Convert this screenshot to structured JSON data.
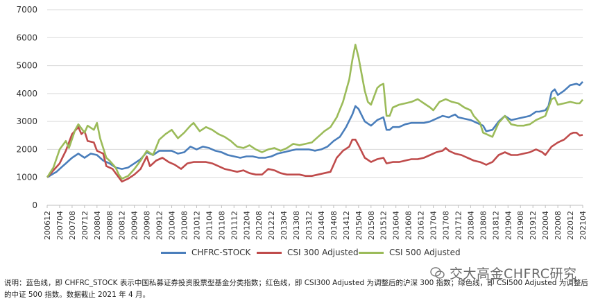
{
  "chart_data": {
    "type": "line",
    "ylim": [
      0,
      7000
    ],
    "yticks": [
      0,
      1000,
      2000,
      3000,
      4000,
      5000,
      6000,
      7000
    ],
    "grid": "horizontal",
    "legend_position": "bottom",
    "x_start": "2006-12",
    "x_step_months": 1,
    "xtick_labels": [
      "200612",
      "200704",
      "200708",
      "200712",
      "200804",
      "200808",
      "200812",
      "200904",
      "200908",
      "200912",
      "201004",
      "201008",
      "201012",
      "201104",
      "201108",
      "201112",
      "201204",
      "201208",
      "201212",
      "201304",
      "201308",
      "201312",
      "201404",
      "201408",
      "201412",
      "201504",
      "201508",
      "201512",
      "201604",
      "201608",
      "201612",
      "201704",
      "201708",
      "201712",
      "201804",
      "201808",
      "201812",
      "201904",
      "201908",
      "201912",
      "202004",
      "202008",
      "202012",
      "202104"
    ],
    "series": [
      {
        "name": "CHFRC-STOCK",
        "color": "#4a7ebb",
        "anchors": [
          [
            0,
            1000
          ],
          [
            3,
            1200
          ],
          [
            6,
            1500
          ],
          [
            8,
            1700
          ],
          [
            10,
            1850
          ],
          [
            12,
            1700
          ],
          [
            14,
            1850
          ],
          [
            16,
            1800
          ],
          [
            18,
            1600
          ],
          [
            20,
            1500
          ],
          [
            22,
            1350
          ],
          [
            24,
            1300
          ],
          [
            26,
            1350
          ],
          [
            28,
            1500
          ],
          [
            30,
            1650
          ],
          [
            32,
            1900
          ],
          [
            34,
            1800
          ],
          [
            36,
            1950
          ],
          [
            38,
            1950
          ],
          [
            40,
            1950
          ],
          [
            42,
            1850
          ],
          [
            44,
            1900
          ],
          [
            46,
            2100
          ],
          [
            48,
            2000
          ],
          [
            50,
            2100
          ],
          [
            52,
            2050
          ],
          [
            54,
            1950
          ],
          [
            56,
            1900
          ],
          [
            58,
            1800
          ],
          [
            60,
            1750
          ],
          [
            62,
            1700
          ],
          [
            64,
            1750
          ],
          [
            66,
            1750
          ],
          [
            68,
            1700
          ],
          [
            70,
            1700
          ],
          [
            72,
            1750
          ],
          [
            74,
            1850
          ],
          [
            76,
            1900
          ],
          [
            78,
            1950
          ],
          [
            80,
            2000
          ],
          [
            82,
            2000
          ],
          [
            84,
            2000
          ],
          [
            86,
            1950
          ],
          [
            88,
            2000
          ],
          [
            90,
            2100
          ],
          [
            92,
            2300
          ],
          [
            94,
            2450
          ],
          [
            96,
            2800
          ],
          [
            98,
            3250
          ],
          [
            99,
            3550
          ],
          [
            100,
            3450
          ],
          [
            102,
            3000
          ],
          [
            104,
            2850
          ],
          [
            106,
            3050
          ],
          [
            108,
            3150
          ],
          [
            109,
            2700
          ],
          [
            110,
            2700
          ],
          [
            111,
            2800
          ],
          [
            113,
            2800
          ],
          [
            115,
            2900
          ],
          [
            117,
            2950
          ],
          [
            119,
            2950
          ],
          [
            121,
            2950
          ],
          [
            123,
            3000
          ],
          [
            125,
            3100
          ],
          [
            127,
            3200
          ],
          [
            129,
            3150
          ],
          [
            131,
            3250
          ],
          [
            132,
            3150
          ],
          [
            134,
            3100
          ],
          [
            136,
            3050
          ],
          [
            138,
            2950
          ],
          [
            140,
            2850
          ],
          [
            141,
            2650
          ],
          [
            143,
            2700
          ],
          [
            145,
            3000
          ],
          [
            147,
            3200
          ],
          [
            149,
            3050
          ],
          [
            151,
            3100
          ],
          [
            153,
            3150
          ],
          [
            155,
            3200
          ],
          [
            157,
            3350
          ],
          [
            158,
            3350
          ],
          [
            160,
            3400
          ],
          [
            161,
            3550
          ],
          [
            162,
            4050
          ],
          [
            163,
            4150
          ],
          [
            164,
            3950
          ],
          [
            166,
            4100
          ],
          [
            168,
            4300
          ],
          [
            170,
            4350
          ],
          [
            171,
            4300
          ],
          [
            172,
            4420
          ]
        ]
      },
      {
        "name": "CSI 300 Adjusted",
        "color": "#bf4b4b",
        "anchors": [
          [
            0,
            1000
          ],
          [
            2,
            1250
          ],
          [
            4,
            1500
          ],
          [
            6,
            1950
          ],
          [
            8,
            2550
          ],
          [
            10,
            2800
          ],
          [
            11,
            2550
          ],
          [
            12,
            2650
          ],
          [
            13,
            2300
          ],
          [
            15,
            2250
          ],
          [
            16,
            1950
          ],
          [
            18,
            1850
          ],
          [
            19,
            1400
          ],
          [
            21,
            1300
          ],
          [
            22,
            1150
          ],
          [
            23,
            1000
          ],
          [
            24,
            850
          ],
          [
            26,
            950
          ],
          [
            28,
            1100
          ],
          [
            30,
            1300
          ],
          [
            32,
            1750
          ],
          [
            33,
            1400
          ],
          [
            35,
            1600
          ],
          [
            37,
            1700
          ],
          [
            39,
            1550
          ],
          [
            41,
            1450
          ],
          [
            43,
            1300
          ],
          [
            45,
            1500
          ],
          [
            47,
            1550
          ],
          [
            49,
            1550
          ],
          [
            51,
            1550
          ],
          [
            53,
            1500
          ],
          [
            55,
            1400
          ],
          [
            57,
            1300
          ],
          [
            59,
            1250
          ],
          [
            61,
            1200
          ],
          [
            63,
            1250
          ],
          [
            65,
            1150
          ],
          [
            67,
            1100
          ],
          [
            69,
            1100
          ],
          [
            71,
            1300
          ],
          [
            73,
            1250
          ],
          [
            75,
            1150
          ],
          [
            77,
            1100
          ],
          [
            79,
            1100
          ],
          [
            81,
            1100
          ],
          [
            83,
            1050
          ],
          [
            85,
            1050
          ],
          [
            87,
            1100
          ],
          [
            89,
            1150
          ],
          [
            91,
            1200
          ],
          [
            93,
            1700
          ],
          [
            95,
            1950
          ],
          [
            97,
            2100
          ],
          [
            98,
            2350
          ],
          [
            99,
            2350
          ],
          [
            100,
            2150
          ],
          [
            102,
            1700
          ],
          [
            104,
            1550
          ],
          [
            106,
            1650
          ],
          [
            108,
            1700
          ],
          [
            109,
            1500
          ],
          [
            111,
            1550
          ],
          [
            113,
            1550
          ],
          [
            115,
            1600
          ],
          [
            117,
            1650
          ],
          [
            119,
            1650
          ],
          [
            121,
            1700
          ],
          [
            123,
            1800
          ],
          [
            125,
            1900
          ],
          [
            127,
            1950
          ],
          [
            128,
            2050
          ],
          [
            129,
            1950
          ],
          [
            131,
            1850
          ],
          [
            133,
            1800
          ],
          [
            135,
            1700
          ],
          [
            137,
            1600
          ],
          [
            139,
            1550
          ],
          [
            141,
            1450
          ],
          [
            143,
            1550
          ],
          [
            145,
            1800
          ],
          [
            147,
            1900
          ],
          [
            149,
            1800
          ],
          [
            151,
            1800
          ],
          [
            153,
            1850
          ],
          [
            155,
            1900
          ],
          [
            157,
            2000
          ],
          [
            159,
            1900
          ],
          [
            160,
            1800
          ],
          [
            162,
            2100
          ],
          [
            164,
            2250
          ],
          [
            166,
            2350
          ],
          [
            168,
            2550
          ],
          [
            169,
            2600
          ],
          [
            170,
            2600
          ],
          [
            171,
            2500
          ],
          [
            172,
            2520
          ]
        ]
      },
      {
        "name": "CSI 500 Adjusted",
        "color": "#9bbb59",
        "anchors": [
          [
            0,
            1000
          ],
          [
            2,
            1350
          ],
          [
            4,
            2000
          ],
          [
            6,
            2300
          ],
          [
            7,
            2050
          ],
          [
            9,
            2700
          ],
          [
            10,
            2900
          ],
          [
            12,
            2600
          ],
          [
            13,
            2850
          ],
          [
            15,
            2700
          ],
          [
            16,
            2950
          ],
          [
            17,
            2400
          ],
          [
            19,
            1700
          ],
          [
            20,
            1600
          ],
          [
            22,
            1350
          ],
          [
            23,
            1100
          ],
          [
            24,
            950
          ],
          [
            26,
            1050
          ],
          [
            28,
            1300
          ],
          [
            30,
            1600
          ],
          [
            32,
            1950
          ],
          [
            34,
            1800
          ],
          [
            36,
            2350
          ],
          [
            38,
            2550
          ],
          [
            40,
            2700
          ],
          [
            42,
            2400
          ],
          [
            44,
            2600
          ],
          [
            46,
            2850
          ],
          [
            47,
            2950
          ],
          [
            49,
            2650
          ],
          [
            51,
            2800
          ],
          [
            53,
            2700
          ],
          [
            55,
            2550
          ],
          [
            57,
            2450
          ],
          [
            59,
            2300
          ],
          [
            61,
            2100
          ],
          [
            63,
            2050
          ],
          [
            65,
            2150
          ],
          [
            67,
            2000
          ],
          [
            69,
            1900
          ],
          [
            71,
            2000
          ],
          [
            73,
            2050
          ],
          [
            75,
            1950
          ],
          [
            77,
            2050
          ],
          [
            79,
            2200
          ],
          [
            81,
            2150
          ],
          [
            83,
            2200
          ],
          [
            85,
            2250
          ],
          [
            87,
            2450
          ],
          [
            89,
            2650
          ],
          [
            91,
            2800
          ],
          [
            93,
            3150
          ],
          [
            95,
            3700
          ],
          [
            97,
            4500
          ],
          [
            98,
            5200
          ],
          [
            99,
            5750
          ],
          [
            100,
            5300
          ],
          [
            101,
            4700
          ],
          [
            102,
            4100
          ],
          [
            103,
            3700
          ],
          [
            104,
            3600
          ],
          [
            105,
            3900
          ],
          [
            106,
            4200
          ],
          [
            107,
            4300
          ],
          [
            108,
            4350
          ],
          [
            109,
            3200
          ],
          [
            110,
            3200
          ],
          [
            111,
            3500
          ],
          [
            113,
            3600
          ],
          [
            115,
            3650
          ],
          [
            117,
            3700
          ],
          [
            119,
            3800
          ],
          [
            121,
            3650
          ],
          [
            123,
            3500
          ],
          [
            124,
            3400
          ],
          [
            126,
            3700
          ],
          [
            128,
            3800
          ],
          [
            130,
            3700
          ],
          [
            132,
            3650
          ],
          [
            134,
            3500
          ],
          [
            136,
            3400
          ],
          [
            137,
            3200
          ],
          [
            139,
            2950
          ],
          [
            140,
            2600
          ],
          [
            141,
            2550
          ],
          [
            143,
            2450
          ],
          [
            145,
            2950
          ],
          [
            147,
            3200
          ],
          [
            149,
            2900
          ],
          [
            151,
            2850
          ],
          [
            153,
            2850
          ],
          [
            155,
            2900
          ],
          [
            157,
            3050
          ],
          [
            158,
            3100
          ],
          [
            160,
            3200
          ],
          [
            162,
            3800
          ],
          [
            163,
            3850
          ],
          [
            164,
            3600
          ],
          [
            166,
            3650
          ],
          [
            168,
            3700
          ],
          [
            170,
            3650
          ],
          [
            171,
            3650
          ],
          [
            172,
            3780
          ]
        ]
      }
    ]
  },
  "watermark": "交大高金CHFRC研究",
  "note": "说明：蓝色线，即 CHFRC_STOCK 表示中国私募证券投资股票型基金分类指数；红色线，即 CSI300 Adjusted 为调整后的沪深 300 指数；绿色线，即 CSI500 Adjusted 为调整后的中证 500 指数。数据截止 2021 年 4 月。"
}
